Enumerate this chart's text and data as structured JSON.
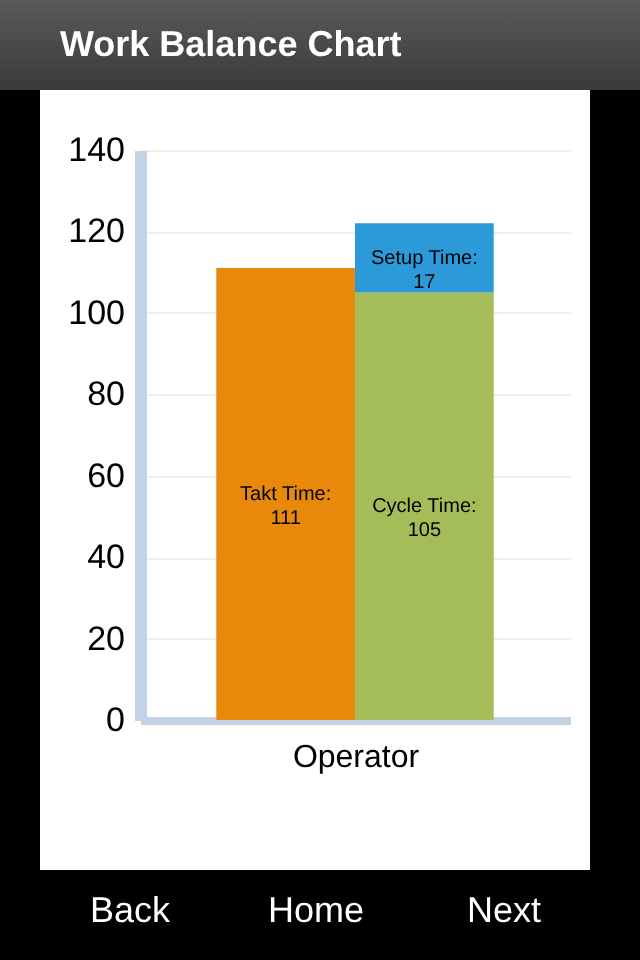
{
  "chart_data": {
    "type": "bar",
    "title": "Work Balance Chart",
    "xlabel": "Operator",
    "categories": [
      null,
      null
    ],
    "stacked": true,
    "series": [
      {
        "name": "Takt Time:",
        "color": "#e8890c",
        "values": [
          111,
          null
        ]
      },
      {
        "name": "Cycle Time:",
        "color": "#a5bd58",
        "values": [
          null,
          105
        ]
      },
      {
        "name": "Setup Time:",
        "color": "#2c9ad9",
        "values": [
          null,
          17
        ]
      }
    ],
    "ylim": [
      0,
      140
    ],
    "yticks": [
      0,
      20,
      40,
      60,
      80,
      100,
      120,
      140
    ],
    "grid": "y",
    "data_labels": true,
    "annotations": [
      "Back",
      "Home",
      "Next"
    ]
  }
}
